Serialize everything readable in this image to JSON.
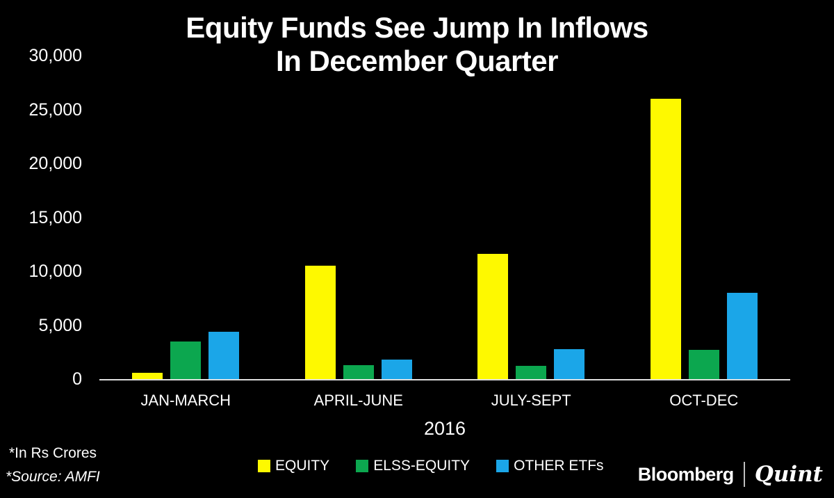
{
  "background": "#000000",
  "title": {
    "lines": [
      "Equity Funds See Jump In Inflows",
      "In December Quarter"
    ]
  },
  "chart_data": {
    "type": "bar",
    "title": "Equity Funds See Jump In Inflows In December Quarter",
    "categories": [
      "JAN-MARCH",
      "APRIL-JUNE",
      "JULY-SEPT",
      "OCT-DEC"
    ],
    "series": [
      {
        "name": "EQUITY",
        "color": "#fef900",
        "values": [
          600,
          10500,
          11600,
          26000
        ]
      },
      {
        "name": "ELSS-EQUITY",
        "color": "#0ca74f",
        "values": [
          3500,
          1300,
          1200,
          2700
        ]
      },
      {
        "name": "OTHER ETFs",
        "color": "#1ba6e8",
        "values": [
          4400,
          1800,
          2800,
          8000
        ]
      }
    ],
    "xlabel": "2016",
    "ylabel": "",
    "ylim": [
      0,
      30000
    ],
    "ytick_step": 5000,
    "yticks": [
      {
        "value": 30000,
        "label": "30,000"
      },
      {
        "value": 25000,
        "label": "25,000"
      },
      {
        "value": 20000,
        "label": "20,000"
      },
      {
        "value": 15000,
        "label": "15,000"
      },
      {
        "value": 10000,
        "label": "10,000"
      },
      {
        "value": 5000,
        "label": "5,000"
      },
      {
        "value": 0,
        "label": "0"
      }
    ],
    "grid": false,
    "legend_position": "bottom",
    "axis_line_color": "#dedede",
    "units_note": "*In Rs Crores"
  },
  "footnotes": {
    "units": "*In Rs Crores",
    "source": "*Source: AMFI"
  },
  "branding": {
    "first": "Bloomberg",
    "second": "Quint"
  }
}
